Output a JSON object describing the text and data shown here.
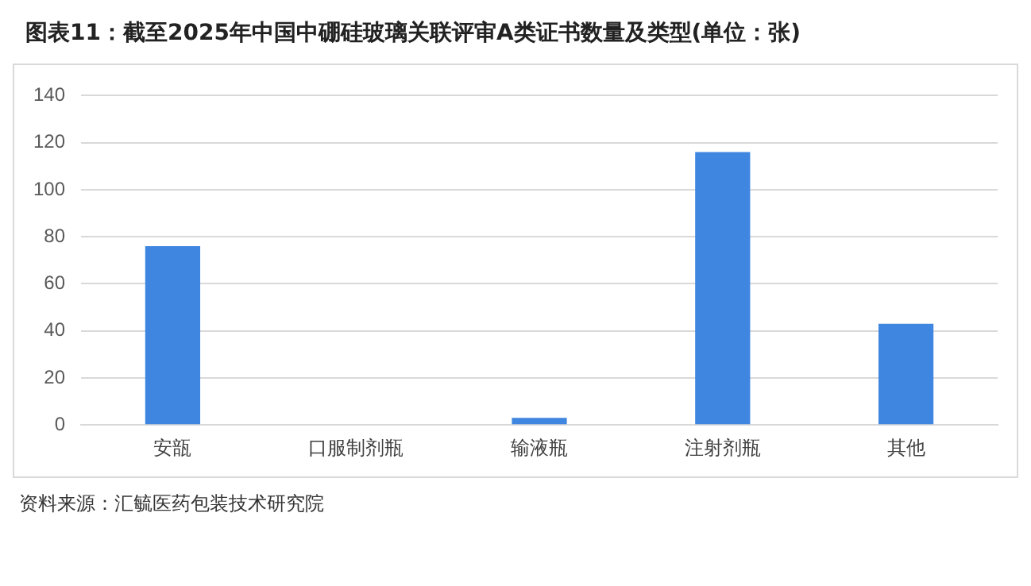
{
  "chart_data": {
    "type": "bar",
    "title": "图表11：截至2025年中国中硼硅玻璃关联评审A类证书数量及类型(单位：张)",
    "categories": [
      "安瓿",
      "口服制剂瓶",
      "输液瓶",
      "注射剂瓶",
      "其他"
    ],
    "values": [
      76,
      0,
      3,
      116,
      43
    ],
    "color": "#3f86e0",
    "ylim": [
      0,
      140
    ],
    "yticks": [
      0,
      20,
      40,
      60,
      80,
      100,
      120,
      140
    ],
    "grid": "y",
    "annotations": [
      "资料来源：汇毓医药包装技术研究院"
    ]
  }
}
